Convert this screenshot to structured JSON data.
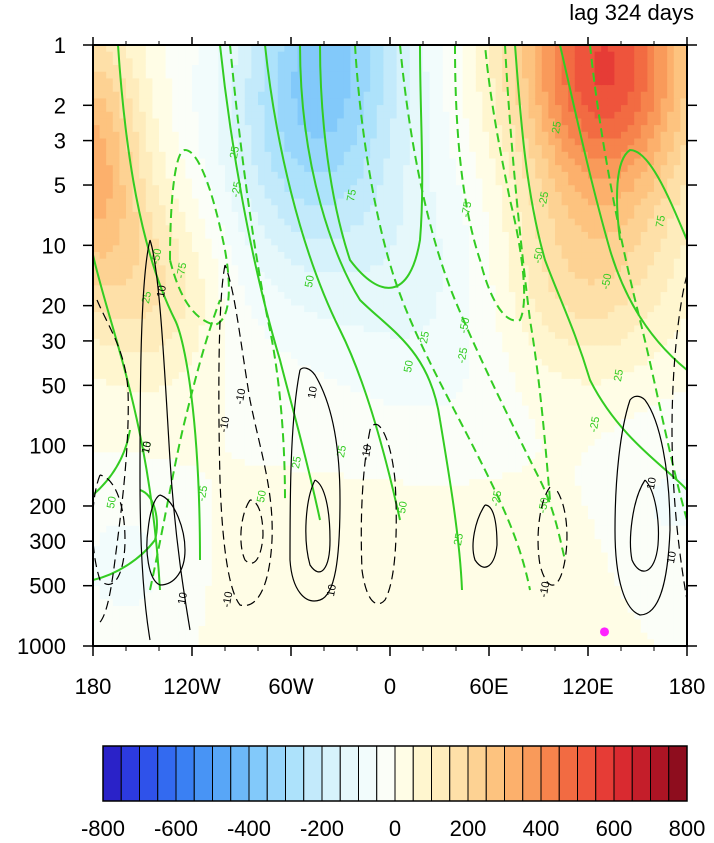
{
  "chart_data": {
    "type": "heatmap",
    "title": "lag 324 days",
    "x_ticks": [
      "180",
      "120W",
      "60W",
      "0",
      "60E",
      "120E",
      "180"
    ],
    "x_range": [
      "180",
      "180"
    ],
    "y_ticks": [
      "1",
      "2",
      "3",
      "5",
      "10",
      "20",
      "30",
      "50",
      "100",
      "200",
      "300",
      "500",
      "1000"
    ],
    "y_range": [
      1000,
      1
    ],
    "y_scale": "log",
    "y_direction": "descending",
    "shading": {
      "levels": [
        -800,
        -750,
        -700,
        -650,
        -600,
        -550,
        -500,
        -450,
        -400,
        -350,
        -300,
        -250,
        -200,
        -150,
        -100,
        -50,
        0,
        50,
        100,
        150,
        200,
        250,
        300,
        350,
        400,
        450,
        500,
        550,
        600,
        650,
        700,
        750,
        800
      ],
      "colors": [
        "#2a22c8",
        "#2c3ae0",
        "#2f52ea",
        "#336af0",
        "#3a80f3",
        "#4894f5",
        "#58a6f7",
        "#6cb8f8",
        "#82c9fa",
        "#98d6fb",
        "#ade2fb",
        "#c3eafb",
        "#d6f2fb",
        "#e6f8fb",
        "#f2fcfc",
        "#fbfef8",
        "#fffde6",
        "#fff6cf",
        "#feecbc",
        "#fee0a8",
        "#fdd293",
        "#fdc37f",
        "#fcb06c",
        "#f99a5a",
        "#f6834c",
        "#f26b42",
        "#ee543c",
        "#e63c36",
        "#d92a30",
        "#c41e2a",
        "#ac1424",
        "#8e0d1e"
      ],
      "colorbar_labels": [
        "-800",
        "-600",
        "-400",
        "-200",
        "0",
        "200",
        "400",
        "600",
        "800"
      ],
      "regions": [
        {
          "sign": "negative",
          "peak": -400,
          "center_lon": -40,
          "center_p": 1.5
        },
        {
          "sign": "positive",
          "peak": 550,
          "center_lon": 130,
          "center_p": 1.6
        },
        {
          "sign": "positive",
          "peak": 300,
          "center_lon": -175,
          "center_p": 5
        },
        {
          "sign": "positive",
          "peak": 50,
          "center_lon": 10,
          "center_p": 300
        }
      ]
    },
    "green_contour_labels": [
      "25",
      "50",
      "75",
      "-25",
      "-50",
      "-75"
    ],
    "black_contour_labels": [
      "10",
      "-10"
    ],
    "marker": {
      "lon": 130,
      "p": 850,
      "color": "#ff22ff"
    }
  }
}
